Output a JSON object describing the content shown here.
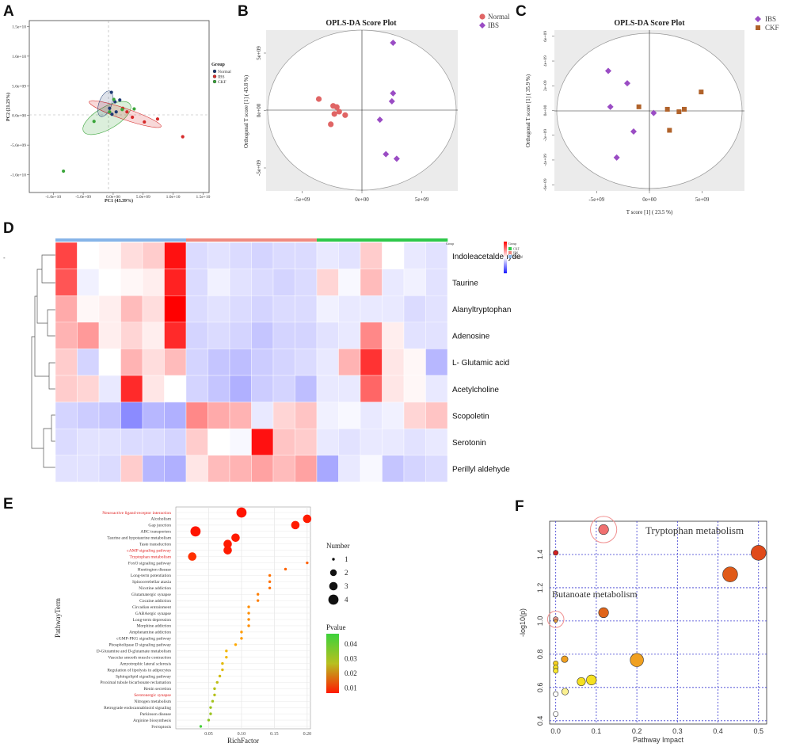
{
  "panels": {
    "A": {
      "label": "A",
      "xlabel": "PC1 (43.39%)",
      "ylabel": "PC2 (21.23%)",
      "x_ticks": [
        "-1.0e+10",
        "-5.0e+09",
        "0.0e+00",
        "5.0e+09",
        "1.0e+10",
        "1.5e+10"
      ],
      "y_ticks": [
        "1.5e+10",
        "1.0e+10",
        "5.0e+09",
        "0.0e+00",
        "-5.0e+09",
        "-1.0e+10"
      ],
      "legend_title": "Group",
      "legend": [
        {
          "name": "Normal",
          "color": "#1f3b73"
        },
        {
          "name": "IBS",
          "color": "#d62a2a"
        },
        {
          "name": "CKF",
          "color": "#3aa53a"
        }
      ]
    },
    "B": {
      "label": "B",
      "title": "OPLS-DA Score Plot",
      "ylabel": "Orthogonal T score [1] ( 43.8 %)",
      "x_ticks": [
        "-5e+09",
        "0e+00",
        "5e+09"
      ],
      "y_ticks": [
        "5e+09",
        "0e+00",
        "-5e+09"
      ],
      "legend": [
        {
          "name": "Normal",
          "color": "#e06565"
        },
        {
          "name": "IBS",
          "color": "#9a4cc4"
        }
      ]
    },
    "C": {
      "label": "C",
      "title": "OPLS-DA Score Plot",
      "xlabel": "T score [1] ( 23.5 %)",
      "ylabel": "Orthogonal T score [1] ( 35.9 %)",
      "x_ticks": [
        "-5e+09",
        "0e+00",
        "5e+09"
      ],
      "y_ticks": [
        "6e+09",
        "4e+09",
        "2e+09",
        "0e+00",
        "-2e+09",
        "-4e+09",
        "-6e+09"
      ],
      "legend": [
        {
          "name": "IBS",
          "color": "#9a4cc4"
        },
        {
          "name": "CKF",
          "color": "#b0622a"
        }
      ]
    },
    "D": {
      "label": "D",
      "legend_title": "Group",
      "legend_groups": [
        "CKF",
        "IBS",
        "Normal"
      ]
    },
    "E": {
      "label": "E",
      "xlabel": "RichFactor",
      "ylabel": "PathwayTerm",
      "x_ticks": [
        "0.05",
        "0.10",
        "0.15",
        "0.20"
      ],
      "size_title": "Number",
      "size_labels": [
        "1",
        "2",
        "3",
        "4"
      ],
      "color_title": "Pvalue",
      "color_labels": [
        "0.04",
        "0.03",
        "0.02",
        "0.01"
      ]
    },
    "F": {
      "label": "F",
      "xlabel": "Pathway Impact",
      "ylabel": "-log10(p)",
      "annotations": [
        "Tryptophan metabolism",
        "Butanoate metabolism"
      ]
    }
  },
  "chart_data": [
    {
      "panel": "A",
      "type": "scatter",
      "xlabel": "PC1 (43.39%)",
      "ylabel": "PC2 (21.23%)",
      "xlim": [
        -14000000000.0,
        16000000000.0
      ],
      "ylim": [
        -13000000000.0,
        16000000000.0
      ],
      "series": [
        {
          "name": "Normal",
          "color": "#1f3b73",
          "points": [
            [
              -300000000.0,
              3900000000.0
            ],
            [
              300000000.0,
              2300000000.0
            ],
            [
              -600000000.0,
              1200000000.0
            ],
            [
              500000000.0,
              600000000.0
            ],
            [
              -200000000.0,
              200000000.0
            ],
            [
              1100000000.0,
              2600000000.0
            ]
          ]
        },
        {
          "name": "IBS",
          "color": "#d62a2a",
          "points": [
            [
              1600000000.0,
              1200000000.0
            ],
            [
              3200000000.0,
              -300000000.0
            ],
            [
              5200000000.0,
              -1100000000.0
            ],
            [
              7400000000.0,
              -600000000.0
            ],
            [
              11600000000.0,
              -3600000000.0
            ],
            [
              2300000000.0,
              600000000.0
            ]
          ]
        },
        {
          "name": "CKF",
          "color": "#3aa53a",
          "points": [
            [
              -8300000000.0,
              -9400000000.0
            ],
            [
              -3200000000.0,
              -1000000000.0
            ],
            [
              100000000.0,
              2700000000.0
            ],
            [
              1500000000.0,
              1000000000.0
            ],
            [
              3500000000.0,
              1100000000.0
            ],
            [
              -600000000.0,
              600000000.0
            ]
          ]
        }
      ]
    },
    {
      "panel": "B",
      "type": "scatter",
      "title": "OPLS-DA Score Plot",
      "ylabel": "Orthogonal T score [1] ( 43.8 %)",
      "xlim": [
        -8000000000.0,
        8000000000.0
      ],
      "ylim": [
        -7000000000.0,
        7000000000.0
      ],
      "series": [
        {
          "name": "Normal",
          "color": "#e06565",
          "points": [
            [
              -3600000000.0,
              1000000000.0
            ],
            [
              -2400000000.0,
              400000000.0
            ],
            [
              -2100000000.0,
              300000000.0
            ],
            [
              -1900000000.0,
              -100000000.0
            ],
            [
              -2300000000.0,
              -300000000.0
            ],
            [
              -1400000000.0,
              -400000000.0
            ],
            [
              -2600000000.0,
              -1200000000.0
            ]
          ]
        },
        {
          "name": "IBS",
          "color": "#9a4cc4",
          "points": [
            [
              2600000000.0,
              5900000000.0
            ],
            [
              2600000000.0,
              1500000000.0
            ],
            [
              2500000000.0,
              800000000.0
            ],
            [
              1500000000.0,
              -800000000.0
            ],
            [
              2000000000.0,
              -3800000000.0
            ],
            [
              2900000000.0,
              -4200000000.0
            ]
          ]
        }
      ]
    },
    {
      "panel": "C",
      "type": "scatter",
      "title": "OPLS-DA Score Plot",
      "xlabel": "T score [1] ( 23.5 %)",
      "ylabel": "Orthogonal T score [1] ( 35.9 %)",
      "xlim": [
        -9000000000.0,
        9000000000.0
      ],
      "ylim": [
        -6500000000.0,
        6500000000.0
      ],
      "series": [
        {
          "name": "IBS",
          "color": "#9a4cc4",
          "points": [
            [
              -3900000000.0,
              3200000000.0
            ],
            [
              -2100000000.0,
              2200000000.0
            ],
            [
              -3700000000.0,
              300000000.0
            ],
            [
              400000000.0,
              -200000000.0
            ],
            [
              -1500000000.0,
              -1700000000.0
            ],
            [
              -3100000000.0,
              -3800000000.0
            ]
          ]
        },
        {
          "name": "CKF",
          "color": "#b0622a",
          "points": [
            [
              -1000000000.0,
              300000000.0
            ],
            [
              1700000000.0,
              100000000.0
            ],
            [
              2800000000.0,
              -100000000.0
            ],
            [
              3300000000.0,
              100000000.0
            ],
            [
              4900000000.0,
              1500000000.0
            ],
            [
              1900000000.0,
              -1600000000.0
            ]
          ]
        }
      ]
    },
    {
      "panel": "D",
      "type": "heatmap",
      "rows": [
        "Indoleacetaldehyde",
        "Taurine",
        "Alanyltryptophan",
        "Adenosine",
        "L- Glutamic acid",
        "Acetylcholine",
        "Scopoletin",
        "Serotonin",
        "Perillyl aldehyde"
      ],
      "column_groups": [
        "Normal",
        "Normal",
        "Normal",
        "Normal",
        "Normal",
        "Normal",
        "IBS",
        "IBS",
        "IBS",
        "IBS",
        "IBS",
        "IBS",
        "CKF",
        "CKF",
        "CKF",
        "CKF",
        "CKF",
        "CKF"
      ],
      "group_colors": {
        "Normal": "#86b4e8",
        "IBS": "#f08a80",
        "CKF": "#2ec84a"
      },
      "values": [
        [
          2.2,
          0.0,
          0.1,
          0.4,
          0.6,
          2.8,
          -0.5,
          -0.4,
          -0.5,
          -0.6,
          -0.5,
          -0.5,
          -0.3,
          -0.4,
          0.6,
          0.0,
          -0.3,
          -0.4
        ],
        [
          2.0,
          -0.2,
          0.0,
          0.1,
          0.2,
          2.6,
          -0.5,
          -0.2,
          -0.4,
          -0.5,
          -0.6,
          -0.5,
          0.5,
          -0.1,
          0.8,
          -0.3,
          -0.2,
          -0.4
        ],
        [
          1.0,
          0.1,
          0.2,
          0.8,
          0.4,
          3.0,
          -0.5,
          -0.4,
          -0.5,
          -0.6,
          -0.5,
          -0.5,
          -0.2,
          -0.3,
          -0.3,
          -0.3,
          -0.5,
          -0.4
        ],
        [
          0.9,
          1.2,
          0.2,
          0.5,
          0.2,
          2.5,
          -0.6,
          -0.5,
          -0.6,
          -0.8,
          -0.6,
          -0.6,
          -0.4,
          -0.3,
          1.4,
          0.2,
          -0.4,
          -0.4
        ],
        [
          0.6,
          -0.6,
          0.0,
          0.9,
          0.4,
          0.8,
          -0.6,
          -0.8,
          -0.9,
          -0.7,
          -0.6,
          -0.5,
          -0.3,
          0.9,
          2.4,
          0.3,
          0.1,
          -1.0
        ],
        [
          0.6,
          0.5,
          -0.3,
          2.5,
          0.3,
          0.0,
          -0.6,
          -0.8,
          -1.1,
          -0.7,
          -0.6,
          -0.9,
          -0.3,
          -0.3,
          1.8,
          0.3,
          0.1,
          -0.3
        ],
        [
          -0.6,
          -0.7,
          -0.8,
          -1.6,
          -1.0,
          -1.1,
          1.4,
          1.0,
          0.9,
          -0.3,
          0.5,
          0.7,
          -0.2,
          -0.1,
          -0.3,
          -0.2,
          0.5,
          0.7
        ],
        [
          -0.5,
          -0.4,
          -0.4,
          -0.5,
          -0.5,
          -0.6,
          0.6,
          0.0,
          -0.1,
          2.8,
          0.7,
          0.6,
          -0.3,
          -0.4,
          -0.3,
          -0.3,
          -0.4,
          -0.3
        ],
        [
          -0.4,
          -0.4,
          -0.5,
          0.6,
          -1.0,
          -1.1,
          0.3,
          0.8,
          0.9,
          1.1,
          0.8,
          1.1,
          -1.2,
          -0.3,
          -0.1,
          -0.8,
          -0.6,
          -0.5
        ]
      ]
    },
    {
      "panel": "E",
      "type": "scatter",
      "xlabel": "RichFactor",
      "ylabel": "PathwayTerm",
      "xlim": [
        0.0,
        0.205
      ],
      "points": [
        {
          "term": "Neuroactive ligand-receptor interaction",
          "rich": 0.1,
          "number": 4,
          "p": 0.001,
          "highlight": true
        },
        {
          "term": "Alcoholism",
          "rich": 0.2,
          "number": 3,
          "p": 0.002,
          "highlight": false
        },
        {
          "term": "Gap junction",
          "rich": 0.182,
          "number": 3,
          "p": 0.002,
          "highlight": false
        },
        {
          "term": "ABC transporters",
          "rich": 0.03,
          "number": 4,
          "p": 0.001,
          "highlight": false
        },
        {
          "term": "Taurine and hypotaurine metabolism",
          "rich": 0.091,
          "number": 3,
          "p": 0.002,
          "highlight": false
        },
        {
          "term": "Taste transduction",
          "rich": 0.079,
          "number": 3,
          "p": 0.002,
          "highlight": false
        },
        {
          "term": "cAMP signaling pathway",
          "rich": 0.079,
          "number": 3,
          "p": 0.002,
          "highlight": true
        },
        {
          "term": "Tryptophan metabolism",
          "rich": 0.025,
          "number": 3,
          "p": 0.005,
          "highlight": true
        },
        {
          "term": "FoxO signaling pathway",
          "rich": 0.2,
          "number": 1,
          "p": 0.012,
          "highlight": false
        },
        {
          "term": "Huntington disease",
          "rich": 0.167,
          "number": 1,
          "p": 0.012,
          "highlight": false
        },
        {
          "term": "Long-term potentiation",
          "rich": 0.143,
          "number": 1,
          "p": 0.014,
          "highlight": false
        },
        {
          "term": "Spinocerebellar ataxia",
          "rich": 0.143,
          "number": 1,
          "p": 0.014,
          "highlight": false
        },
        {
          "term": "Nicotine addiction",
          "rich": 0.143,
          "number": 1,
          "p": 0.014,
          "highlight": false
        },
        {
          "term": "Glutamatergic synapse",
          "rich": 0.125,
          "number": 1,
          "p": 0.016,
          "highlight": false
        },
        {
          "term": "Cocaine addiction",
          "rich": 0.125,
          "number": 1,
          "p": 0.016,
          "highlight": false
        },
        {
          "term": "Circadian entrainment",
          "rich": 0.111,
          "number": 1,
          "p": 0.018,
          "highlight": false
        },
        {
          "term": "GABAergic synapse",
          "rich": 0.111,
          "number": 1,
          "p": 0.018,
          "highlight": false
        },
        {
          "term": "Long-term depression",
          "rich": 0.111,
          "number": 1,
          "p": 0.018,
          "highlight": false
        },
        {
          "term": "Morphine addiction",
          "rich": 0.111,
          "number": 1,
          "p": 0.018,
          "highlight": false
        },
        {
          "term": "Amphetamine addiction",
          "rich": 0.1,
          "number": 1,
          "p": 0.02,
          "highlight": false
        },
        {
          "term": "cGMP-PKG signaling pathway",
          "rich": 0.1,
          "number": 1,
          "p": 0.02,
          "highlight": false
        },
        {
          "term": "Phospholipase D signaling pathway",
          "rich": 0.091,
          "number": 1,
          "p": 0.022,
          "highlight": false
        },
        {
          "term": "D-Glutamine and D-glutamate metabolism",
          "rich": 0.077,
          "number": 1,
          "p": 0.025,
          "highlight": false
        },
        {
          "term": "Vascular smooth muscle contraction",
          "rich": 0.077,
          "number": 1,
          "p": 0.025,
          "highlight": false
        },
        {
          "term": "Amyotrophic lateral sclerosis",
          "rich": 0.071,
          "number": 1,
          "p": 0.027,
          "highlight": false
        },
        {
          "term": "Regulation of lipolysis in adipocytes",
          "rich": 0.071,
          "number": 1,
          "p": 0.027,
          "highlight": false
        },
        {
          "term": "Sphingolipid signaling pathway",
          "rich": 0.067,
          "number": 1,
          "p": 0.029,
          "highlight": false
        },
        {
          "term": "Proximal tubule bicarbonate reclamation",
          "rich": 0.063,
          "number": 1,
          "p": 0.031,
          "highlight": false
        },
        {
          "term": "Renin secretion",
          "rich": 0.059,
          "number": 1,
          "p": 0.032,
          "highlight": false
        },
        {
          "term": "Serotonergic synapse",
          "rich": 0.059,
          "number": 1,
          "p": 0.032,
          "highlight": true
        },
        {
          "term": "Nitrogen metabolism",
          "rich": 0.056,
          "number": 1,
          "p": 0.034,
          "highlight": false
        },
        {
          "term": "Retrograde endocannabinoid signaling",
          "rich": 0.053,
          "number": 1,
          "p": 0.035,
          "highlight": false
        },
        {
          "term": "Parkinson disease",
          "rich": 0.053,
          "number": 1,
          "p": 0.035,
          "highlight": false
        },
        {
          "term": "Arginine biosynthesis",
          "rich": 0.05,
          "number": 1,
          "p": 0.037,
          "highlight": false
        },
        {
          "term": "Ferroptosis",
          "rich": 0.038,
          "number": 1,
          "p": 0.045,
          "highlight": false
        }
      ]
    },
    {
      "panel": "F",
      "type": "scatter",
      "xlabel": "Pathway Impact",
      "ylabel": "-log10(p)",
      "xlim": [
        -0.015,
        0.52
      ],
      "ylim": [
        0.38,
        1.6
      ],
      "x_ticks": [
        0.0,
        0.1,
        0.2,
        0.3,
        0.4,
        0.5
      ],
      "y_ticks": [
        0.4,
        0.6,
        0.8,
        1.0,
        1.2,
        1.4
      ],
      "points": [
        {
          "x": 0.118,
          "y": 1.55,
          "size": 6,
          "color": "#f07070",
          "ring": true
        },
        {
          "x": 0.5,
          "y": 1.41,
          "size": 9,
          "color": "#e04a1a"
        },
        {
          "x": 0.0,
          "y": 1.41,
          "size": 3,
          "color": "#d42020"
        },
        {
          "x": 0.43,
          "y": 1.28,
          "size": 9,
          "color": "#e05a18"
        },
        {
          "x": 0.118,
          "y": 1.05,
          "size": 6,
          "color": "#e06418"
        },
        {
          "x": 0.0,
          "y": 1.01,
          "size": 3,
          "color": "#f09a90",
          "ring": true
        },
        {
          "x": 0.0,
          "y": 1.0,
          "size": 2,
          "color": "#e8a040"
        },
        {
          "x": 0.2,
          "y": 0.765,
          "size": 8,
          "color": "#f0a020"
        },
        {
          "x": 0.022,
          "y": 0.77,
          "size": 4,
          "color": "#f0a020"
        },
        {
          "x": 0.0,
          "y": 0.745,
          "size": 3,
          "color": "#f5d020"
        },
        {
          "x": 0.0,
          "y": 0.72,
          "size": 3,
          "color": "#f5e020"
        },
        {
          "x": 0.0,
          "y": 0.7,
          "size": 3,
          "color": "#f8e830"
        },
        {
          "x": 0.088,
          "y": 0.645,
          "size": 6,
          "color": "#f5e020"
        },
        {
          "x": 0.063,
          "y": 0.635,
          "size": 5,
          "color": "#f5e020"
        },
        {
          "x": 0.023,
          "y": 0.575,
          "size": 4,
          "color": "#fbf090"
        },
        {
          "x": 0.0,
          "y": 0.56,
          "size": 3,
          "color": "#ffffff"
        },
        {
          "x": 0.0,
          "y": 0.44,
          "size": 3,
          "color": "#ffffff"
        }
      ]
    }
  ]
}
